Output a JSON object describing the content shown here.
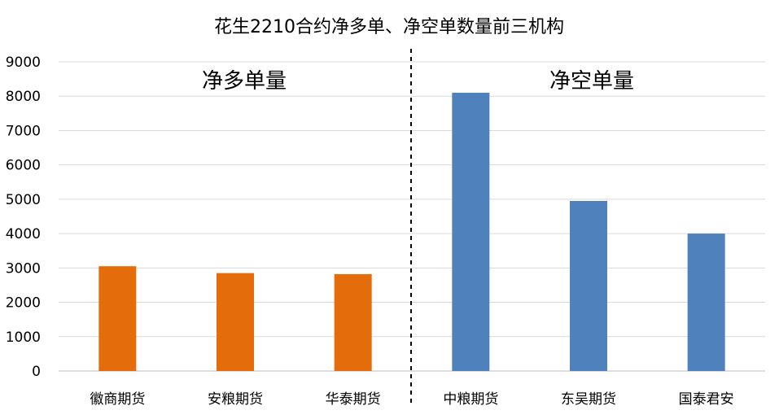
{
  "chart_data": {
    "type": "bar",
    "title": "花生2210合约净多单、净空单数量前三机构",
    "xlabel": "",
    "ylabel": "",
    "ylim": [
      0,
      9000
    ],
    "yticks": [
      0,
      1000,
      2000,
      3000,
      4000,
      5000,
      6000,
      7000,
      8000,
      9000
    ],
    "grid": true,
    "legend": "none",
    "groups": [
      {
        "label": "净多单量",
        "color": "#E46C0A",
        "categories": [
          "徽商期货",
          "安粮期货",
          "华泰期货"
        ],
        "values": [
          3050,
          2850,
          2820
        ]
      },
      {
        "label": "净空单量",
        "color": "#4F81BD",
        "categories": [
          "中粮期货",
          "东吴期货",
          "国泰君安"
        ],
        "values": [
          8100,
          4950,
          4000
        ]
      }
    ]
  }
}
